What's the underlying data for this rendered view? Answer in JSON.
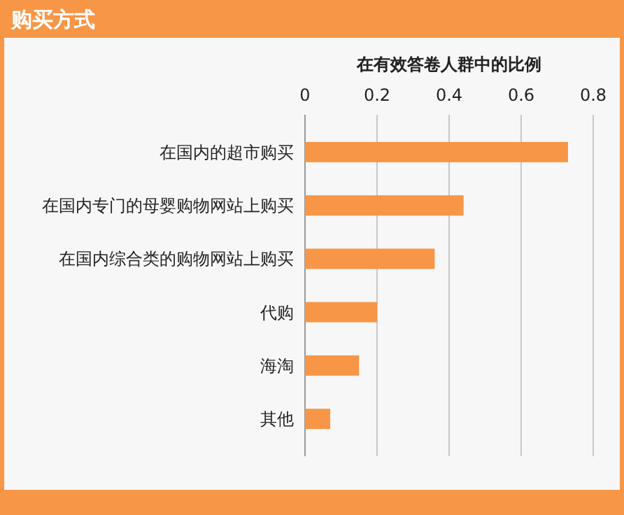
{
  "chart_data": {
    "type": "bar",
    "orientation": "horizontal",
    "title": "购买方式",
    "xlabel": "在有效答卷人群中的比例",
    "categories": [
      "在国内的超市购买",
      "在国内专门的母婴购物网站上购买",
      "在国内综合类的购物网站上购买",
      "代购",
      "海淘",
      "其他"
    ],
    "values": [
      0.73,
      0.44,
      0.36,
      0.2,
      0.15,
      0.07
    ],
    "color": "#f79646",
    "xlim": [
      0,
      0.8
    ],
    "xticks": [
      0,
      0.2,
      0.4,
      0.6,
      0.8
    ],
    "grid": "x"
  }
}
